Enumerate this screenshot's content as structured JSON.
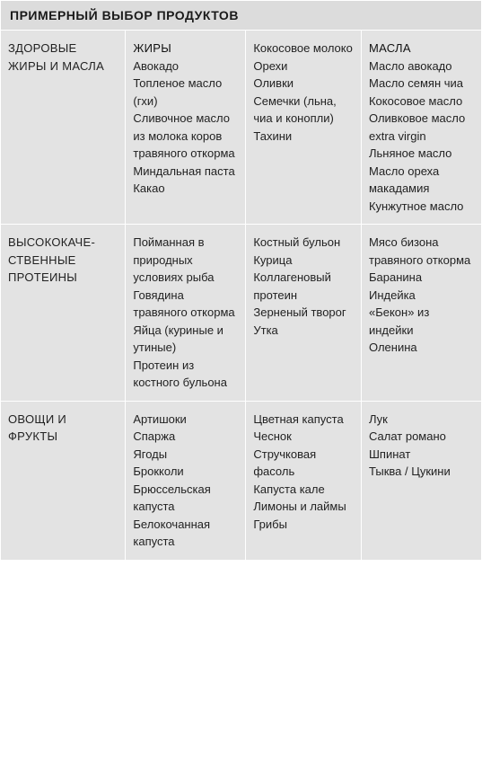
{
  "title": "ПРИМЕРНЫЙ ВЫБОР ПРОДУКТОВ",
  "colors": {
    "header_bg": "#dcdcdc",
    "cell_bg": "#e3e3e3",
    "border": "#ffffff",
    "text": "#222222"
  },
  "columns": 4,
  "rows": [
    {
      "label": "ЗДОРОВЫЕ ЖИРЫ И МАСЛА",
      "cells": [
        {
          "subheader": "ЖИРЫ",
          "items": [
            "Авокадо",
            "Топленое масло (гхи)",
            "Сливочное масло из молока коров травяного откорма",
            "Миндальная паста",
            "Какао"
          ]
        },
        {
          "subheader": "",
          "items": [
            "Кокосовое молоко",
            "Орехи",
            "Оливки",
            "Семечки (льна, чиа и конопли)",
            "Тахини"
          ]
        },
        {
          "subheader": "МАСЛА",
          "items": [
            "Масло авокадо",
            "Масло семян чиа",
            "Кокосовое масло",
            "Оливковое масло extra virgin",
            "Льняное масло",
            "Масло ореха макадамия",
            "Кунжутное масло"
          ]
        }
      ]
    },
    {
      "label": "ВЫСОКОКАЧЕ-СТВЕННЫЕ ПРОТЕИНЫ",
      "cells": [
        {
          "subheader": "",
          "items": [
            "Пойманная в природных условиях рыба",
            "Говядина травяного откорма",
            "Яйца (куриные и утиные)",
            "Протеин из костного бульона"
          ]
        },
        {
          "subheader": "",
          "items": [
            "Костный бульон",
            "Курица",
            "Коллагеновый протеин",
            "Зерненый творог",
            "Утка"
          ]
        },
        {
          "subheader": "",
          "items": [
            "Мясо бизона травяного откорма",
            "Баранина",
            "Индейка",
            "«Бекон» из индейки",
            "Оленина"
          ]
        }
      ]
    },
    {
      "label": "ОВОЩИ И ФРУКТЫ",
      "cells": [
        {
          "subheader": "",
          "items": [
            "Артишоки",
            "Спаржа",
            "Ягоды",
            "Брокколи",
            "Брюссельская капуста",
            "Белокочанная капуста"
          ]
        },
        {
          "subheader": "",
          "items": [
            "Цветная капуста",
            "Чеснок",
            "Стручковая фасоль",
            "Капуста кале",
            "Лимоны и лаймы",
            "Грибы"
          ]
        },
        {
          "subheader": "",
          "items": [
            "Лук",
            "Салат романо",
            "Шпинат",
            "Тыква / Цукини"
          ]
        }
      ]
    }
  ]
}
